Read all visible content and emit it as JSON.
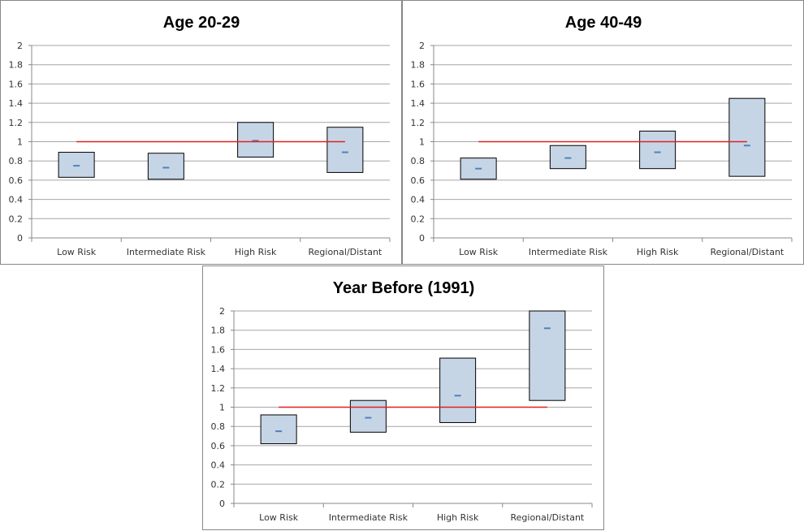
{
  "colors": {
    "box_fill": "#c6d5e6",
    "box_stroke": "#000000",
    "marker": "#4f81bd",
    "reference_line": "#e02020",
    "grid": "#a6a6a6"
  },
  "chart_data": [
    {
      "type": "box",
      "title": "Age 20-29",
      "categories": [
        "Low Risk",
        "Intermediate Risk",
        "High Risk",
        "Regional/Distant"
      ],
      "lower": [
        0.63,
        0.61,
        0.84,
        0.68
      ],
      "upper": [
        0.89,
        0.88,
        1.2,
        1.15
      ],
      "estimate": [
        0.75,
        0.73,
        1.01,
        0.89
      ],
      "reference_line": 1,
      "ylim": [
        0,
        2
      ],
      "yticks": [
        0,
        0.2,
        0.4,
        0.6,
        0.8,
        1,
        1.2,
        1.4,
        1.6,
        1.8,
        2
      ],
      "ytick_labels": [
        "0",
        "0.2",
        "0.4",
        "0.6",
        "0.8",
        "1",
        "1.2",
        "1.4",
        "1.6",
        "1.8",
        "2"
      ],
      "grid": true,
      "xlabel": "",
      "ylabel": ""
    },
    {
      "type": "box",
      "title": "Age 40-49",
      "categories": [
        "Low Risk",
        "Intermediate Risk",
        "High Risk",
        "Regional/Distant"
      ],
      "lower": [
        0.61,
        0.72,
        0.72,
        0.64
      ],
      "upper": [
        0.83,
        0.96,
        1.11,
        1.45
      ],
      "estimate": [
        0.72,
        0.83,
        0.89,
        0.96
      ],
      "reference_line": 1,
      "ylim": [
        0,
        2
      ],
      "yticks": [
        0,
        0.2,
        0.4,
        0.6,
        0.8,
        1,
        1.2,
        1.4,
        1.6,
        1.8,
        2
      ],
      "ytick_labels": [
        "0",
        "0.2",
        "0.4",
        "0.6",
        "0.8",
        "1",
        "1.2",
        "1.4",
        "1.6",
        "1.8",
        "2"
      ],
      "grid": true,
      "xlabel": "",
      "ylabel": ""
    },
    {
      "type": "box",
      "title": "Year Before (1991)",
      "categories": [
        "Low Risk",
        "Intermediate Risk",
        "High Risk",
        "Regional/Distant"
      ],
      "lower": [
        0.62,
        0.74,
        0.84,
        1.07
      ],
      "upper": [
        0.92,
        1.07,
        1.51,
        2.0
      ],
      "estimate": [
        0.75,
        0.89,
        1.12,
        1.82
      ],
      "reference_line": 1,
      "ylim": [
        0,
        2
      ],
      "yticks": [
        0,
        0.2,
        0.4,
        0.6,
        0.8,
        1,
        1.2,
        1.4,
        1.6,
        1.8,
        2
      ],
      "ytick_labels": [
        "0",
        "0.2",
        "0.4",
        "0.6",
        "0.8",
        "1",
        "1.2",
        "1.4",
        "1.6",
        "1.8",
        "2"
      ],
      "grid": true,
      "xlabel": "",
      "ylabel": ""
    }
  ]
}
